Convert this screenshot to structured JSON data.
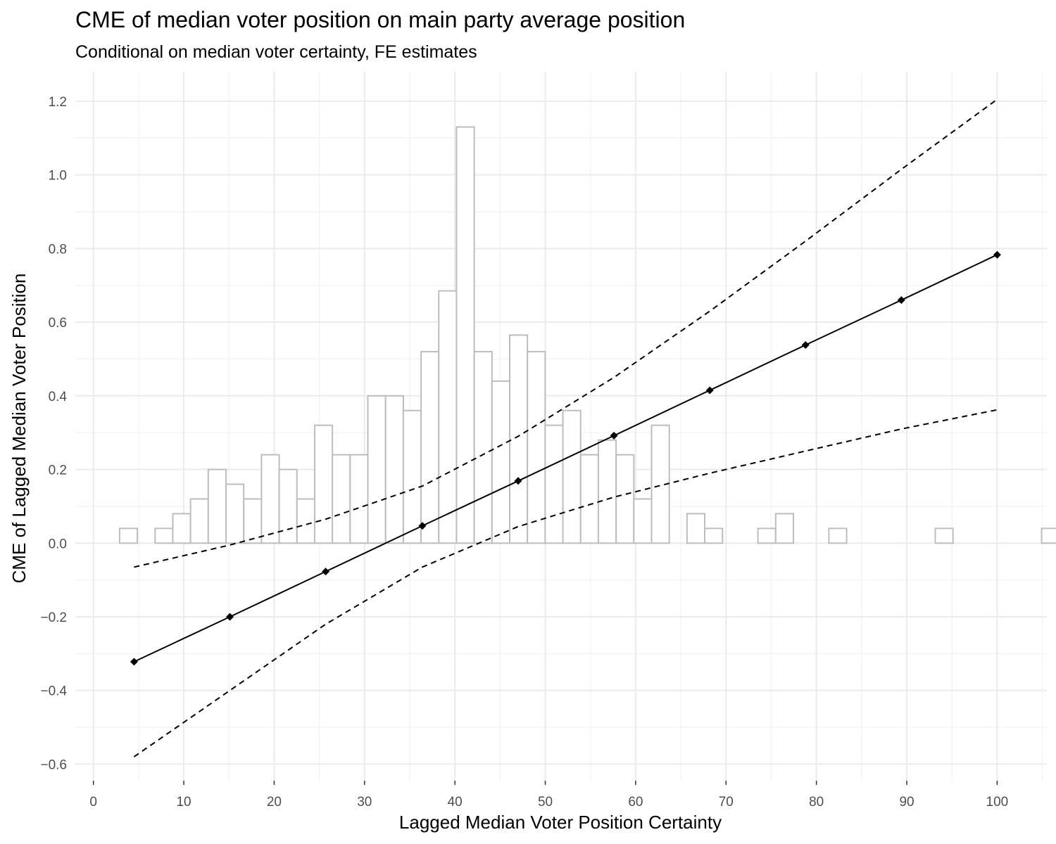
{
  "chart_data": {
    "type": "line",
    "title": "CME of median voter position on main party average position",
    "subtitle": "Conditional on median voter certainty, FE estimates",
    "xlabel": "Lagged Median Voter Position Certainty",
    "ylabel": "CME of Lagged Median Voter Position",
    "xlim": [
      -2,
      105.5
    ],
    "ylim": [
      -0.645,
      1.28
    ],
    "x_ticks": [
      0,
      10,
      20,
      30,
      40,
      50,
      60,
      70,
      80,
      90,
      100
    ],
    "y_ticks": [
      -0.6,
      -0.4,
      -0.2,
      0.0,
      0.2,
      0.4,
      0.6,
      0.8,
      1.0,
      1.2
    ],
    "x_tick_labels": [
      "0",
      "10",
      "20",
      "30",
      "40",
      "50",
      "60",
      "70",
      "80",
      "90",
      "100"
    ],
    "y_tick_labels": [
      "−0.6",
      "−0.4",
      "−0.2",
      "0.0",
      "0.2",
      "0.4",
      "0.6",
      "0.8",
      "1.0",
      "1.2"
    ],
    "grid": true,
    "series": [
      {
        "x": [
          4.5,
          15.1,
          25.7,
          36.4,
          47.0,
          57.6,
          68.2,
          78.8,
          89.4,
          100
        ],
        "y": [
          -0.322,
          -0.2,
          -0.077,
          0.047,
          0.169,
          0.292,
          0.415,
          0.538,
          0.66,
          0.783
        ],
        "style": "solid",
        "markers": "diamond",
        "color": "#000000"
      },
      {
        "x": [
          4.5,
          15.1,
          25.7,
          36.4,
          47.0,
          57.6,
          68.2,
          78.8,
          89.4,
          100
        ],
        "y": [
          -0.065,
          -0.005,
          0.065,
          0.155,
          0.29,
          0.45,
          0.63,
          0.82,
          1.015,
          1.205
        ],
        "style": "dashed",
        "color": "#000000"
      },
      {
        "x": [
          4.5,
          15.1,
          25.7,
          36.4,
          47.0,
          57.6,
          68.2,
          78.8,
          89.4,
          100
        ],
        "y": [
          -0.58,
          -0.4,
          -0.22,
          -0.065,
          0.045,
          0.125,
          0.19,
          0.25,
          0.31,
          0.362
        ],
        "style": "dashed",
        "color": "#000000"
      }
    ],
    "histogram": {
      "bin_start": 2.9,
      "bin_width": 1.962,
      "heights": [
        0.04,
        0.0,
        0.04,
        0.08,
        0.12,
        0.2,
        0.16,
        0.12,
        0.24,
        0.2,
        0.12,
        0.32,
        0.24,
        0.24,
        0.4,
        0.4,
        0.36,
        0.52,
        0.685,
        1.13,
        0.52,
        0.44,
        0.565,
        0.52,
        0.32,
        0.36,
        0.24,
        0.28,
        0.24,
        0.12,
        0.32,
        0.0,
        0.08,
        0.04,
        0.0,
        0.0,
        0.04,
        0.08,
        0.0,
        0.0,
        0.04,
        0.0,
        0.0,
        0.0,
        0.0,
        0.0,
        0.04,
        0.0,
        0.0,
        0.0,
        0.0,
        0.0,
        0.04
      ],
      "fill": "#ffffff",
      "stroke": "#bdbdbd"
    },
    "colors": {
      "grid_major": "#ebebeb",
      "grid_minor": "#f4f4f4",
      "tick_text": "#4d4d4d"
    }
  }
}
